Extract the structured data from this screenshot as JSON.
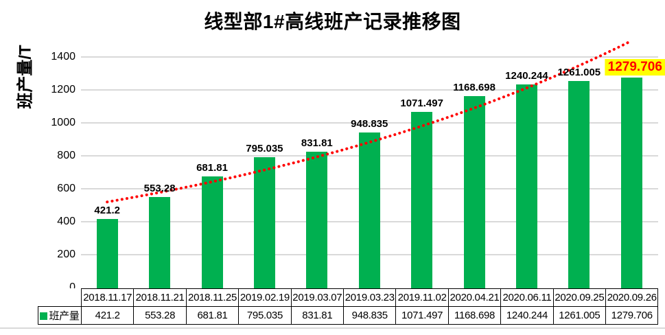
{
  "chart_data": {
    "type": "bar",
    "title": "线型部1#高线班产记录推移图",
    "ylabel": "班产量/T",
    "xlabel": "",
    "categories": [
      "2018.11.17",
      "2018.11.21",
      "2018.11.25",
      "2019.02.19",
      "2019.03.07",
      "2019.03.23",
      "2019.11.02",
      "2020.04.21",
      "2020.06.11",
      "2020.09.25",
      "2020.09.26"
    ],
    "series": [
      {
        "name": "班产量",
        "values": [
          421.2,
          553.28,
          681.81,
          795.035,
          831.81,
          948.835,
          1071.497,
          1168.698,
          1240.244,
          1261.005,
          1279.706
        ]
      }
    ],
    "data_labels": [
      "421.2",
      "553.28",
      "681.81",
      "795.035",
      "831.81",
      "948.835",
      "1071.497",
      "1168.698",
      "1240.244",
      "1261.005",
      "1279.706"
    ],
    "y_ticks": [
      "0",
      "200",
      "400",
      "600",
      "800",
      "1000",
      "1200",
      "1400"
    ],
    "ylim": [
      0,
      1500
    ],
    "ytick_step": 200,
    "grid": true,
    "legend_position": "data-table-left",
    "bar_color": "#00B050",
    "gridline_color": "#d9d9d9",
    "trendline": {
      "type": "exponential",
      "color": "#FF0000",
      "style": "dotted"
    },
    "highlight": {
      "index": 10,
      "text_color": "#FF0000",
      "background": "#FFFF00"
    },
    "data_table_shown": true
  }
}
